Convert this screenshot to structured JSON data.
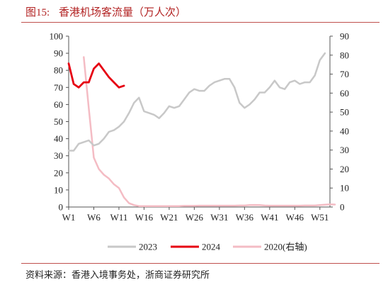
{
  "figure": {
    "label": "图15:",
    "title": "香港机场客流量（万人次）",
    "source": "资料来源：香港入境事务处，浙商证券研究所"
  },
  "colors": {
    "2023": "#c8c8c8",
    "2024": "#e60012",
    "2020": "#f4bcc4",
    "title": "#b22222",
    "rule": "#c0504d"
  },
  "chart_data": {
    "type": "line",
    "title": "香港机场客流量（万人次）",
    "xlabel": "",
    "ylabel": "",
    "x_ticks": [
      "W1",
      "W6",
      "W11",
      "W16",
      "W21",
      "W26",
      "W31",
      "W36",
      "W41",
      "W46",
      "W51"
    ],
    "ylim_left": [
      0,
      100
    ],
    "ylim_right": [
      0,
      90
    ],
    "yticks_left": [
      0,
      10,
      20,
      30,
      40,
      50,
      60,
      70,
      80,
      90,
      100
    ],
    "yticks_right": [
      0,
      10,
      20,
      30,
      40,
      50,
      60,
      70,
      80,
      90
    ],
    "legend_position": "bottom",
    "grid": false,
    "series": [
      {
        "name": "2023",
        "axis": "left",
        "week_start": 1,
        "values": [
          33,
          33,
          37,
          38,
          39,
          36,
          37,
          40,
          44,
          45,
          47,
          50,
          55,
          61,
          64,
          56,
          55,
          54,
          52,
          55,
          59,
          58,
          59,
          63,
          67,
          69,
          68,
          68,
          71,
          73,
          74,
          75,
          75,
          70,
          61,
          58,
          60,
          63,
          67,
          67,
          70,
          74,
          70,
          69,
          73,
          74,
          72,
          73,
          73,
          77,
          86,
          90
        ]
      },
      {
        "name": "2024",
        "axis": "left",
        "week_start": 1,
        "values": [
          84,
          72,
          70,
          73,
          73,
          81,
          84,
          80,
          76,
          73,
          70,
          71
        ]
      },
      {
        "name": "2020(右轴)",
        "axis": "right",
        "week_start": 4,
        "values": [
          79,
          52,
          26,
          20,
          17,
          15,
          12,
          10,
          5,
          2,
          1,
          0.5,
          0.5,
          0.5,
          0.5,
          0.5,
          0.5,
          0.5,
          0.5,
          0.5,
          0.6,
          0.6,
          0.6,
          0.7,
          0.7,
          0.7,
          0.7,
          0.7,
          0.7,
          0.7,
          0.7,
          0.8,
          0.8,
          1.0,
          1.1,
          1.0,
          0.8,
          0.7,
          0.7,
          0.7,
          0.7,
          0.7,
          0.7,
          0.7,
          0.8,
          0.8,
          0.8,
          1.0,
          1.2,
          1.4,
          1.3
        ]
      }
    ]
  }
}
